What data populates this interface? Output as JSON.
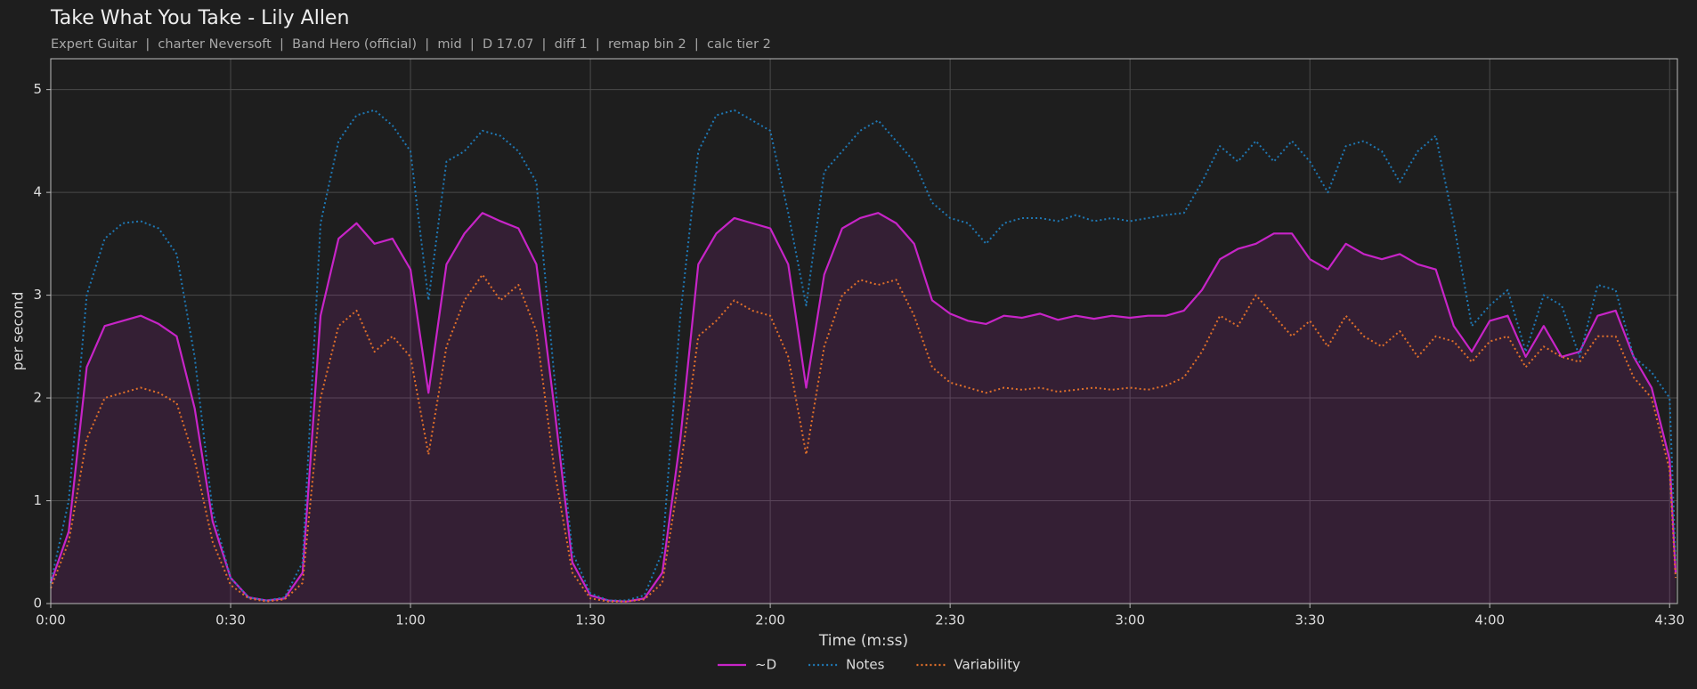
{
  "chart_data": {
    "type": "line",
    "title": "Take What You Take - Lily Allen",
    "subtitle": "Expert Guitar  |  charter Neversoft  |  Band Hero (official)  |  mid  |  D 17.07  |  diff 1  |  remap bin 2  |  calc tier 2",
    "xlabel": "Time (m:ss)",
    "ylabel": "per second",
    "xlim": [
      0,
      271.3
    ],
    "ylim": [
      0,
      5.3
    ],
    "xticks": [
      {
        "value": 0,
        "label": "0:00"
      },
      {
        "value": 30,
        "label": "0:30"
      },
      {
        "value": 60,
        "label": "1:00"
      },
      {
        "value": 90,
        "label": "1:30"
      },
      {
        "value": 120,
        "label": "2:00"
      },
      {
        "value": 150,
        "label": "2:30"
      },
      {
        "value": 180,
        "label": "3:00"
      },
      {
        "value": 210,
        "label": "3:30"
      },
      {
        "value": 240,
        "label": "4:00"
      },
      {
        "value": 270,
        "label": "4:30"
      }
    ],
    "yticks": [
      0,
      1,
      2,
      3,
      4,
      5
    ],
    "grid": true,
    "legend": "bottom",
    "x": [
      0,
      3,
      6,
      9,
      12,
      15,
      18,
      21,
      24,
      27,
      30,
      33,
      36,
      39,
      42,
      45,
      48,
      51,
      54,
      57,
      60,
      63,
      66,
      69,
      72,
      75,
      78,
      81,
      84,
      87,
      90,
      93,
      96,
      99,
      102,
      105,
      108,
      111,
      114,
      117,
      120,
      123,
      126,
      129,
      132,
      135,
      138,
      141,
      144,
      147,
      150,
      153,
      156,
      159,
      162,
      165,
      168,
      171,
      174,
      177,
      180,
      183,
      186,
      189,
      192,
      195,
      198,
      201,
      204,
      207,
      210,
      213,
      216,
      219,
      222,
      225,
      228,
      231,
      234,
      237,
      240,
      243,
      246,
      249,
      252,
      255,
      258,
      261,
      264,
      267,
      270,
      271
    ],
    "series": [
      {
        "name": "~D",
        "color": "#c724c7",
        "linestyle": "solid",
        "fill": true,
        "values": [
          0.2,
          0.7,
          2.3,
          2.7,
          2.75,
          2.8,
          2.72,
          2.6,
          1.9,
          0.8,
          0.25,
          0.06,
          0.03,
          0.05,
          0.3,
          2.8,
          3.55,
          3.7,
          3.5,
          3.55,
          3.25,
          2.05,
          3.3,
          3.6,
          3.8,
          3.72,
          3.65,
          3.3,
          1.9,
          0.4,
          0.08,
          0.03,
          0.02,
          0.05,
          0.3,
          1.6,
          3.3,
          3.6,
          3.75,
          3.7,
          3.65,
          3.3,
          2.1,
          3.2,
          3.65,
          3.75,
          3.8,
          3.7,
          3.5,
          2.95,
          2.82,
          2.75,
          2.72,
          2.8,
          2.78,
          2.82,
          2.76,
          2.8,
          2.77,
          2.8,
          2.78,
          2.8,
          2.8,
          2.85,
          3.05,
          3.35,
          3.45,
          3.5,
          3.6,
          3.6,
          3.35,
          3.25,
          3.5,
          3.4,
          3.35,
          3.4,
          3.3,
          3.25,
          2.7,
          2.45,
          2.75,
          2.8,
          2.4,
          2.7,
          2.4,
          2.45,
          2.8,
          2.85,
          2.4,
          2.1,
          1.4,
          0.3
        ]
      },
      {
        "name": "Notes",
        "color": "#1f78b4",
        "linestyle": "dotted",
        "values": [
          0.2,
          1.0,
          3.0,
          3.55,
          3.7,
          3.72,
          3.65,
          3.4,
          2.4,
          0.9,
          0.25,
          0.06,
          0.03,
          0.06,
          0.4,
          3.7,
          4.5,
          4.75,
          4.8,
          4.65,
          4.4,
          2.95,
          4.3,
          4.4,
          4.6,
          4.55,
          4.4,
          4.1,
          2.2,
          0.5,
          0.1,
          0.03,
          0.03,
          0.08,
          0.5,
          2.8,
          4.4,
          4.75,
          4.8,
          4.7,
          4.6,
          3.8,
          2.9,
          4.2,
          4.4,
          4.6,
          4.7,
          4.5,
          4.3,
          3.9,
          3.75,
          3.7,
          3.5,
          3.7,
          3.75,
          3.75,
          3.72,
          3.78,
          3.72,
          3.75,
          3.72,
          3.75,
          3.78,
          3.8,
          4.1,
          4.45,
          4.3,
          4.5,
          4.3,
          4.5,
          4.3,
          4.0,
          4.45,
          4.5,
          4.4,
          4.1,
          4.4,
          4.55,
          3.7,
          2.7,
          2.9,
          3.05,
          2.45,
          3.0,
          2.9,
          2.4,
          3.1,
          3.05,
          2.4,
          2.25,
          2.0,
          0.4
        ]
      },
      {
        "name": "Variability",
        "color": "#e0702a",
        "linestyle": "dotted",
        "values": [
          0.15,
          0.6,
          1.6,
          2.0,
          2.05,
          2.1,
          2.05,
          1.95,
          1.4,
          0.6,
          0.18,
          0.05,
          0.02,
          0.04,
          0.2,
          2.0,
          2.7,
          2.85,
          2.45,
          2.6,
          2.4,
          1.45,
          2.5,
          2.95,
          3.2,
          2.95,
          3.1,
          2.65,
          1.3,
          0.3,
          0.05,
          0.02,
          0.02,
          0.04,
          0.2,
          1.3,
          2.6,
          2.75,
          2.95,
          2.85,
          2.8,
          2.4,
          1.45,
          2.5,
          3.0,
          3.15,
          3.1,
          3.15,
          2.8,
          2.3,
          2.15,
          2.1,
          2.05,
          2.1,
          2.08,
          2.1,
          2.06,
          2.08,
          2.1,
          2.08,
          2.1,
          2.08,
          2.12,
          2.2,
          2.45,
          2.8,
          2.7,
          3.0,
          2.8,
          2.6,
          2.75,
          2.5,
          2.8,
          2.6,
          2.5,
          2.65,
          2.4,
          2.6,
          2.55,
          2.35,
          2.55,
          2.6,
          2.3,
          2.5,
          2.4,
          2.35,
          2.6,
          2.6,
          2.2,
          2.0,
          1.3,
          0.25
        ]
      }
    ]
  }
}
